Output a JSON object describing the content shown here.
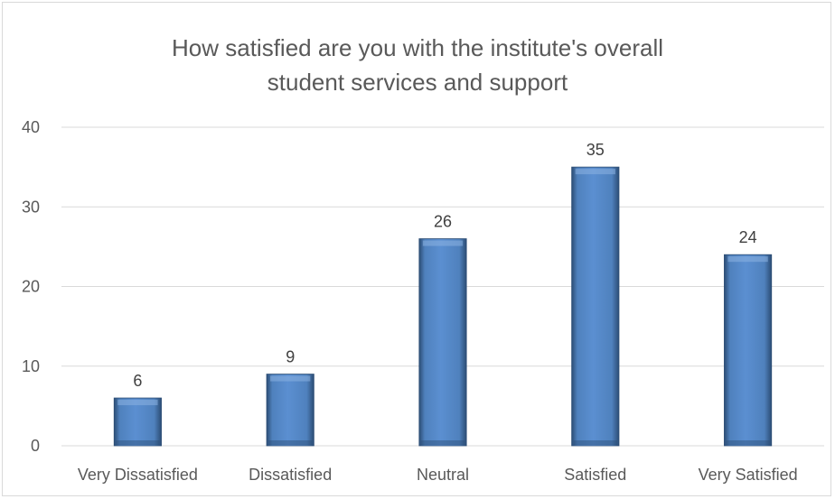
{
  "chart_data": {
    "type": "bar",
    "title_lines": [
      "How satisfied are you with the institute's overall",
      "student services and support"
    ],
    "categories": [
      "Very Dissatisfied",
      "Dissatisfied",
      "Neutral",
      "Satisfied",
      "Very Satisfied"
    ],
    "values": [
      6,
      9,
      26,
      35,
      24
    ],
    "value_labels": [
      "6",
      "9",
      "26",
      "35",
      "24"
    ],
    "ylim": [
      0,
      40
    ],
    "y_ticks": [
      "0",
      "10",
      "20",
      "30",
      "40"
    ],
    "xlabel": "",
    "ylabel": "",
    "grid": true,
    "legend": "none",
    "colors": {
      "bar": "#4f81bd",
      "bar_light": "#8db3e2",
      "bar_dark": "#2c4d75",
      "grid": "#d9d9d9",
      "text": "#595959"
    }
  }
}
